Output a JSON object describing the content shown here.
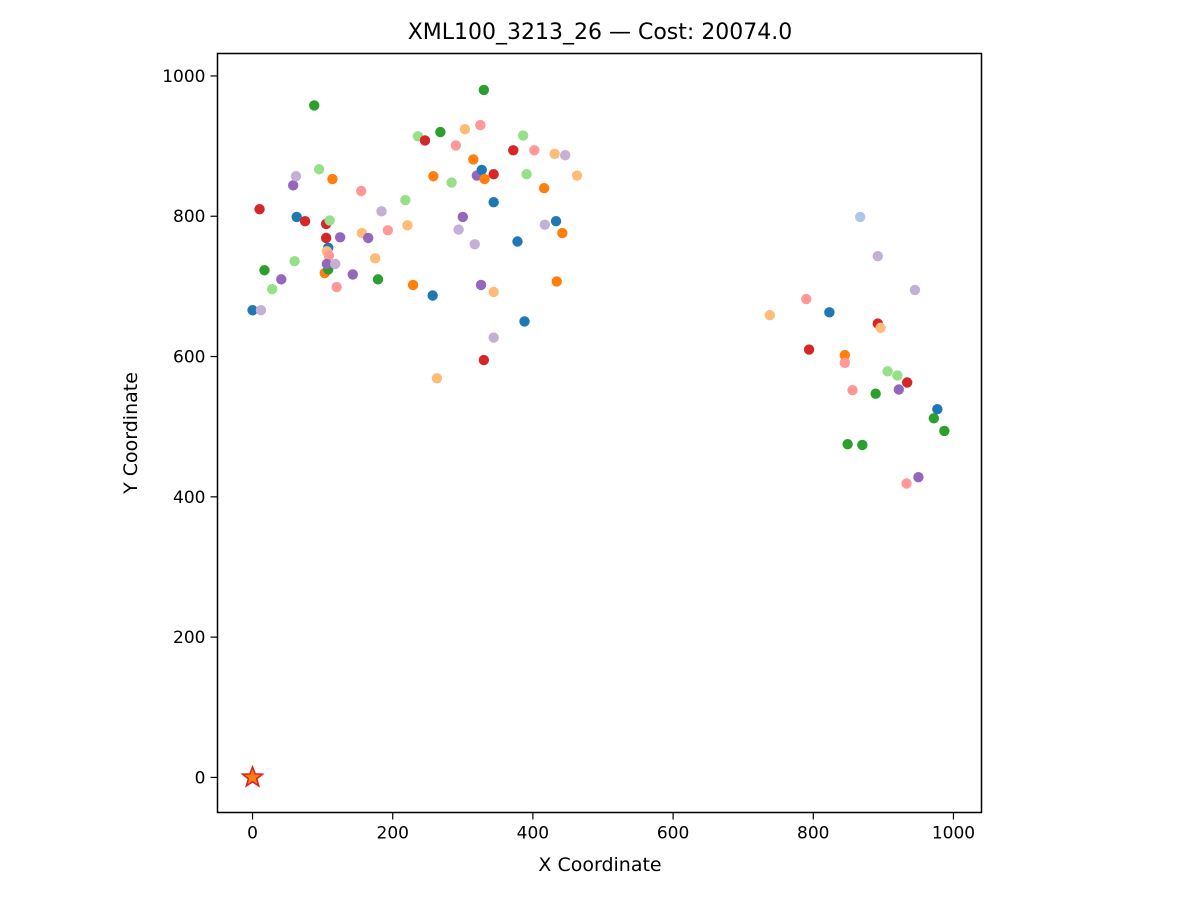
{
  "chart_data": {
    "type": "scatter",
    "title": "XML100_3213_26  —  Cost: 20074.0",
    "xlabel": "X Coordinate",
    "ylabel": "Y Coordinate",
    "xlim": [
      -50,
      1040
    ],
    "ylim": [
      -50,
      1032
    ],
    "xticks": [
      0,
      200,
      400,
      600,
      800,
      1000
    ],
    "yticks": [
      0,
      200,
      400,
      600,
      800,
      1000
    ],
    "grid": false,
    "legend": "none",
    "depot": {
      "x": 0,
      "y": 0,
      "marker": "star",
      "fill": "#ff7f0e",
      "edge": "#d62728"
    },
    "colors": {
      "blue": "#1f77b4",
      "lightblue": "#aec7e8",
      "orange": "#ff7f0e",
      "lightorange": "#ffbb78",
      "green": "#2ca02c",
      "lightgreen": "#98df8a",
      "red": "#d62728",
      "pink": "#ff9896",
      "purple": "#9467bd",
      "lilac": "#c5b0d5"
    },
    "points": [
      {
        "x": 0,
        "y": 666,
        "c": "blue"
      },
      {
        "x": 12,
        "y": 666,
        "c": "lilac"
      },
      {
        "x": 10,
        "y": 810,
        "c": "red"
      },
      {
        "x": 17,
        "y": 723,
        "c": "green"
      },
      {
        "x": 28,
        "y": 696,
        "c": "lightgreen"
      },
      {
        "x": 41,
        "y": 710,
        "c": "purple"
      },
      {
        "x": 58,
        "y": 844,
        "c": "purple"
      },
      {
        "x": 62,
        "y": 857,
        "c": "lilac"
      },
      {
        "x": 63,
        "y": 799,
        "c": "blue"
      },
      {
        "x": 60,
        "y": 736,
        "c": "lightgreen"
      },
      {
        "x": 75,
        "y": 793,
        "c": "red"
      },
      {
        "x": 88,
        "y": 958,
        "c": "green"
      },
      {
        "x": 95,
        "y": 867,
        "c": "lightgreen"
      },
      {
        "x": 105,
        "y": 789,
        "c": "red"
      },
      {
        "x": 105,
        "y": 769,
        "c": "red"
      },
      {
        "x": 108,
        "y": 755,
        "c": "blue"
      },
      {
        "x": 106,
        "y": 750,
        "c": "lightorange"
      },
      {
        "x": 109,
        "y": 744,
        "c": "pink"
      },
      {
        "x": 103,
        "y": 719,
        "c": "orange"
      },
      {
        "x": 108,
        "y": 724,
        "c": "green"
      },
      {
        "x": 106,
        "y": 732,
        "c": "purple"
      },
      {
        "x": 110,
        "y": 794,
        "c": "lightgreen"
      },
      {
        "x": 114,
        "y": 853,
        "c": "orange"
      },
      {
        "x": 118,
        "y": 732,
        "c": "lilac"
      },
      {
        "x": 120,
        "y": 699,
        "c": "pink"
      },
      {
        "x": 125,
        "y": 770,
        "c": "purple"
      },
      {
        "x": 143,
        "y": 717,
        "c": "purple"
      },
      {
        "x": 155,
        "y": 836,
        "c": "pink"
      },
      {
        "x": 156,
        "y": 776,
        "c": "lightorange"
      },
      {
        "x": 165,
        "y": 769,
        "c": "purple"
      },
      {
        "x": 175,
        "y": 740,
        "c": "lightorange"
      },
      {
        "x": 179,
        "y": 710,
        "c": "green"
      },
      {
        "x": 184,
        "y": 807,
        "c": "lilac"
      },
      {
        "x": 193,
        "y": 780,
        "c": "pink"
      },
      {
        "x": 218,
        "y": 823,
        "c": "lightgreen"
      },
      {
        "x": 221,
        "y": 787,
        "c": "lightorange"
      },
      {
        "x": 229,
        "y": 702,
        "c": "orange"
      },
      {
        "x": 236,
        "y": 914,
        "c": "lightgreen"
      },
      {
        "x": 246,
        "y": 908,
        "c": "red"
      },
      {
        "x": 257,
        "y": 687,
        "c": "blue"
      },
      {
        "x": 258,
        "y": 857,
        "c": "orange"
      },
      {
        "x": 263,
        "y": 569,
        "c": "lightorange"
      },
      {
        "x": 268,
        "y": 920,
        "c": "green"
      },
      {
        "x": 284,
        "y": 848,
        "c": "lightgreen"
      },
      {
        "x": 290,
        "y": 901,
        "c": "pink"
      },
      {
        "x": 294,
        "y": 781,
        "c": "lilac"
      },
      {
        "x": 300,
        "y": 799,
        "c": "purple"
      },
      {
        "x": 303,
        "y": 924,
        "c": "lightorange"
      },
      {
        "x": 315,
        "y": 881,
        "c": "orange"
      },
      {
        "x": 317,
        "y": 760,
        "c": "lilac"
      },
      {
        "x": 320,
        "y": 858,
        "c": "purple"
      },
      {
        "x": 325,
        "y": 930,
        "c": "pink"
      },
      {
        "x": 326,
        "y": 702,
        "c": "purple"
      },
      {
        "x": 327,
        "y": 866,
        "c": "blue"
      },
      {
        "x": 331,
        "y": 853,
        "c": "orange"
      },
      {
        "x": 330,
        "y": 980,
        "c": "green"
      },
      {
        "x": 330,
        "y": 595,
        "c": "red"
      },
      {
        "x": 344,
        "y": 860,
        "c": "red"
      },
      {
        "x": 344,
        "y": 820,
        "c": "blue"
      },
      {
        "x": 344,
        "y": 692,
        "c": "lightorange"
      },
      {
        "x": 344,
        "y": 627,
        "c": "lilac"
      },
      {
        "x": 372,
        "y": 894,
        "c": "red"
      },
      {
        "x": 378,
        "y": 764,
        "c": "blue"
      },
      {
        "x": 386,
        "y": 915,
        "c": "lightgreen"
      },
      {
        "x": 388,
        "y": 650,
        "c": "blue"
      },
      {
        "x": 391,
        "y": 860,
        "c": "lightgreen"
      },
      {
        "x": 402,
        "y": 894,
        "c": "pink"
      },
      {
        "x": 416,
        "y": 840,
        "c": "orange"
      },
      {
        "x": 417,
        "y": 788,
        "c": "lilac"
      },
      {
        "x": 431,
        "y": 889,
        "c": "lightorange"
      },
      {
        "x": 433,
        "y": 793,
        "c": "blue"
      },
      {
        "x": 434,
        "y": 707,
        "c": "orange"
      },
      {
        "x": 442,
        "y": 776,
        "c": "orange"
      },
      {
        "x": 446,
        "y": 887,
        "c": "lilac"
      },
      {
        "x": 463,
        "y": 858,
        "c": "lightorange"
      },
      {
        "x": 738,
        "y": 659,
        "c": "lightorange"
      },
      {
        "x": 790,
        "y": 682,
        "c": "pink"
      },
      {
        "x": 794,
        "y": 610,
        "c": "red"
      },
      {
        "x": 823,
        "y": 663,
        "c": "blue"
      },
      {
        "x": 845,
        "y": 602,
        "c": "orange"
      },
      {
        "x": 845,
        "y": 591,
        "c": "pink"
      },
      {
        "x": 849,
        "y": 475,
        "c": "green"
      },
      {
        "x": 856,
        "y": 552,
        "c": "pink"
      },
      {
        "x": 867,
        "y": 799,
        "c": "lightblue"
      },
      {
        "x": 870,
        "y": 474,
        "c": "green"
      },
      {
        "x": 889,
        "y": 547,
        "c": "green"
      },
      {
        "x": 892,
        "y": 743,
        "c": "lilac"
      },
      {
        "x": 892,
        "y": 647,
        "c": "red"
      },
      {
        "x": 896,
        "y": 641,
        "c": "lightorange"
      },
      {
        "x": 906,
        "y": 579,
        "c": "lightgreen"
      },
      {
        "x": 920,
        "y": 573,
        "c": "lightgreen"
      },
      {
        "x": 922,
        "y": 553,
        "c": "purple"
      },
      {
        "x": 933,
        "y": 419,
        "c": "pink"
      },
      {
        "x": 934,
        "y": 563,
        "c": "red"
      },
      {
        "x": 945,
        "y": 695,
        "c": "lilac"
      },
      {
        "x": 950,
        "y": 428,
        "c": "purple"
      },
      {
        "x": 972,
        "y": 512,
        "c": "green"
      },
      {
        "x": 977,
        "y": 525,
        "c": "blue"
      },
      {
        "x": 987,
        "y": 494,
        "c": "green"
      }
    ]
  }
}
